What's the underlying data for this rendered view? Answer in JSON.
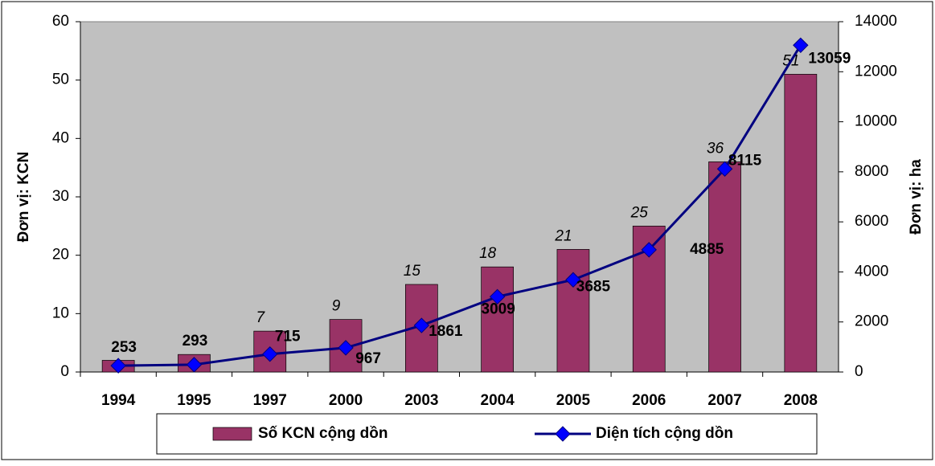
{
  "chart_data": {
    "type": "bar_line",
    "categories": [
      "1994",
      "1995",
      "1997",
      "2000",
      "2003",
      "2004",
      "2005",
      "2006",
      "2007",
      "2008"
    ],
    "series": [
      {
        "name": "Số KCN cộng dồn",
        "type": "bar",
        "color": "#993366",
        "values": [
          2,
          3,
          7,
          9,
          15,
          18,
          21,
          25,
          36,
          51
        ],
        "value_labels": [
          null,
          null,
          "7",
          "9",
          "15",
          "18",
          "21",
          "25",
          "36",
          "51"
        ]
      },
      {
        "name": "Diện tích cộng dồn",
        "type": "line",
        "axis": "y2",
        "color": "#000080",
        "marker_color": "#0000ff",
        "values": [
          253,
          293,
          715,
          967,
          1861,
          3009,
          3685,
          4885,
          8115,
          13059
        ]
      }
    ],
    "ylabel": "Đơn vị: KCN",
    "y2label": "Đơn vị: ha",
    "ylim": [
      0,
      60
    ],
    "yticks": [
      0,
      10,
      20,
      30,
      40,
      50,
      60
    ],
    "y2lim": [
      0,
      14000
    ],
    "y2ticks": [
      0,
      2000,
      4000,
      6000,
      8000,
      10000,
      12000,
      14000
    ],
    "plot_background": "#c0c0c0",
    "legend": "bottom"
  }
}
